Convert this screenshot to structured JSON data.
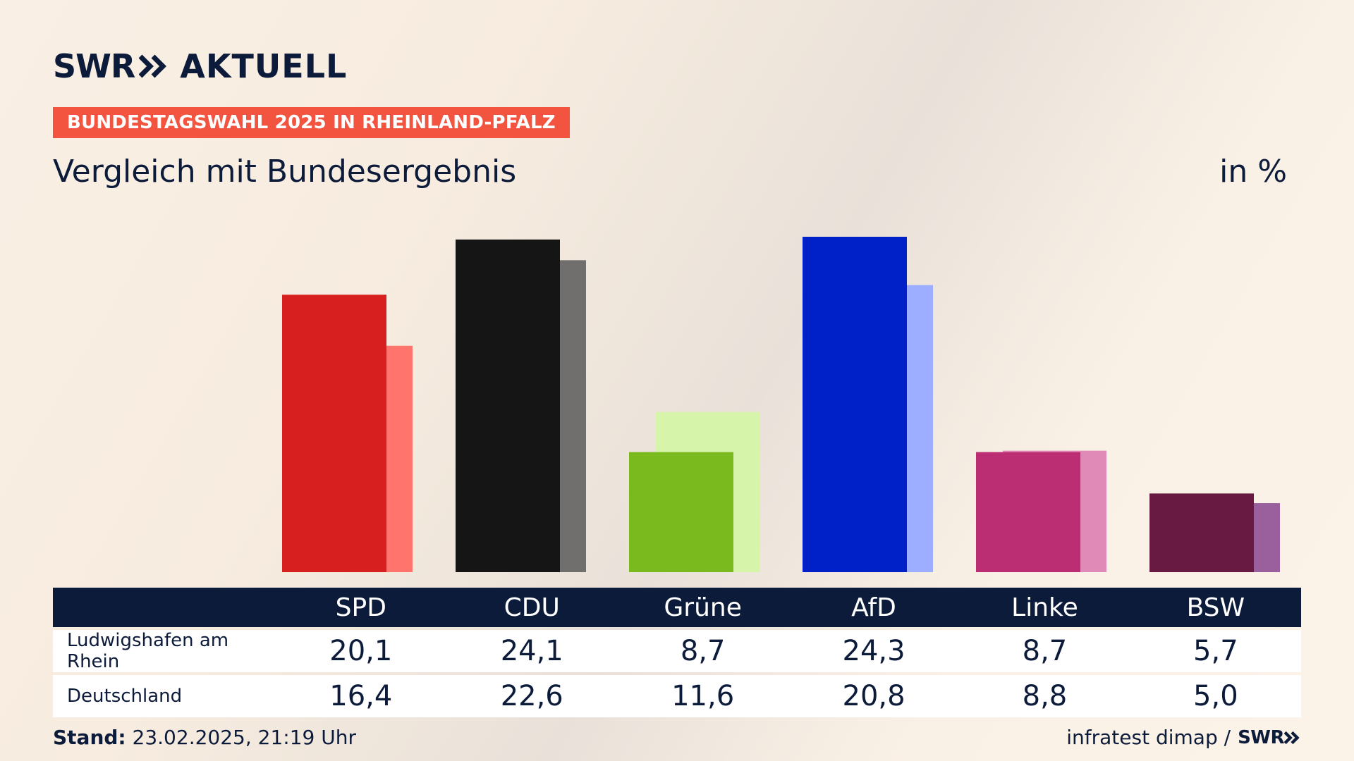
{
  "brand": {
    "logo_left": "SWR",
    "logo_right": "AKTUELL",
    "footer_logo": "SWR"
  },
  "banner": "BUNDESTAGSWAHL 2025 IN RHEINLAND-PFALZ",
  "subtitle": "Vergleich mit Bundesergebnis",
  "unit": "in %",
  "footer": {
    "stand_label": "Stand:",
    "stand_value": "23.02.2025, 21:19 Uhr",
    "source": "infratest dimap /"
  },
  "table": {
    "row1_label": "Ludwigshafen am Rhein",
    "row2_label": "Deutschland"
  },
  "chart_data": {
    "type": "bar",
    "categories": [
      "SPD",
      "CDU",
      "Grüne",
      "AfD",
      "Linke",
      "BSW"
    ],
    "series": [
      {
        "name": "Ludwigshafen am Rhein",
        "values": [
          20.1,
          24.1,
          8.7,
          24.3,
          8.7,
          5.7
        ],
        "labels": [
          "20,1",
          "24,1",
          "8,7",
          "24,3",
          "8,7",
          "5,7"
        ]
      },
      {
        "name": "Deutschland",
        "values": [
          16.4,
          22.6,
          11.6,
          20.8,
          8.8,
          5.0
        ],
        "labels": [
          "16,4",
          "22,6",
          "11,6",
          "20,8",
          "8,8",
          "5,0"
        ]
      }
    ],
    "colors_primary": [
      "#d81f1f",
      "#151515",
      "#7aba1f",
      "#0020c8",
      "#bc2e74",
      "#691a43"
    ],
    "colors_secondary": [
      "#ff746c",
      "#706f6e",
      "#d7f5aa",
      "#9dadff",
      "#df8ab7",
      "#9a609d"
    ],
    "ylim": [
      0,
      24.3
    ],
    "grid": false,
    "legend": "table-below"
  }
}
